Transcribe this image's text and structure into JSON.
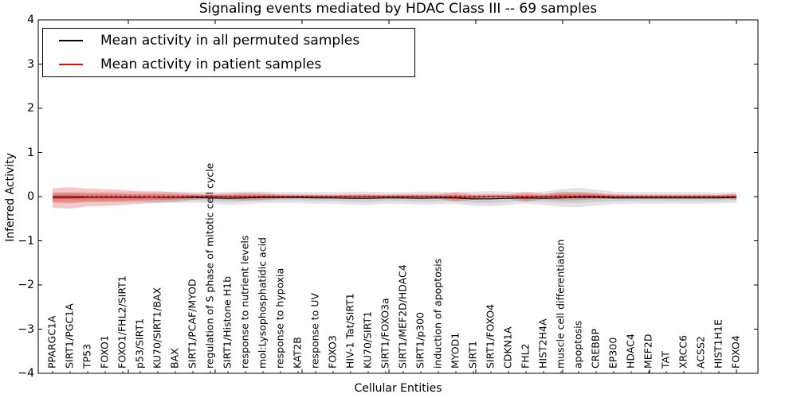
{
  "title": "Signaling events mediated by HDAC Class III -- 69 samples",
  "legend": {
    "items": [
      {
        "label": "Mean activity in all permuted samples",
        "color": "#000000"
      },
      {
        "label": "Mean activity in patient samples",
        "color": "#ff0000"
      }
    ]
  },
  "chart_data": {
    "type": "line",
    "title": "Signaling events mediated by HDAC Class III -- 69 samples",
    "xlabel": "Cellular Entities",
    "ylabel": "Inferred Activity",
    "ylim": [
      -4,
      4
    ],
    "yticks": [
      -4,
      -3,
      -2,
      -1,
      0,
      1,
      2,
      3,
      4
    ],
    "grid": false,
    "legend_position": "upper left",
    "zero_line": {
      "style": "dashed",
      "color": "#000000",
      "y": 0
    },
    "categories": [
      "PPARGC1A",
      "SIRT1/PGC1A",
      "TP53",
      "FOXO1",
      "FOXO1/FHL2/SIRT1",
      "p53/SIRT1",
      "KU70/SIRT1/BAX",
      "BAX",
      "SIRT1/PCAF/MYOD",
      "regulation of S phase of mitotic cell cycle",
      "SIRT1/Histone H1b",
      "response to nutrient levels",
      "mol:Lysophosphatidic acid",
      "response to hypoxia",
      "KAT2B",
      "response to UV",
      "FOXO3",
      "HIV-1 Tat/SIRT1",
      "KU70/SIRT1",
      "SIRT1/FOXO3a",
      "SIRT1/MEF2D/HDAC4",
      "SIRT1/p300",
      "induction of apoptosis",
      "MYOD1",
      "SIRT1",
      "SIRT1/FOXO4",
      "CDKN1A",
      "FHL2",
      "HIST2H4A",
      "muscle cell differentiation",
      "apoptosis",
      "CREBBP",
      "EP300",
      "HDAC4",
      "MEF2D",
      "TAT",
      "XRCC6",
      "ACSS2",
      "HIST1H1E",
      "FOXO4"
    ],
    "series": [
      {
        "name": "Mean activity in all permuted samples",
        "color": "#000000",
        "band_color": "#505050",
        "values": [
          0.0,
          0.0,
          -0.01,
          -0.01,
          -0.01,
          -0.01,
          -0.02,
          -0.02,
          -0.02,
          -0.03,
          -0.04,
          -0.03,
          -0.02,
          -0.02,
          -0.02,
          -0.03,
          -0.03,
          -0.04,
          -0.04,
          -0.03,
          -0.03,
          -0.04,
          -0.03,
          -0.03,
          -0.05,
          -0.05,
          -0.04,
          -0.03,
          -0.04,
          -0.03,
          -0.02,
          -0.02,
          -0.03,
          -0.03,
          -0.03,
          -0.03,
          -0.03,
          -0.03,
          -0.03,
          -0.02
        ],
        "band_halfwidth": [
          0.1,
          0.1,
          0.1,
          0.11,
          0.11,
          0.11,
          0.12,
          0.12,
          0.12,
          0.13,
          0.15,
          0.14,
          0.13,
          0.12,
          0.12,
          0.13,
          0.13,
          0.15,
          0.15,
          0.13,
          0.13,
          0.15,
          0.14,
          0.13,
          0.16,
          0.17,
          0.15,
          0.13,
          0.15,
          0.2,
          0.22,
          0.18,
          0.14,
          0.13,
          0.13,
          0.13,
          0.13,
          0.13,
          0.12,
          0.12
        ]
      },
      {
        "name": "Mean activity in patient samples",
        "color": "#ff0000",
        "band_color": "#dd3333",
        "values": [
          -0.03,
          -0.03,
          -0.02,
          -0.02,
          -0.02,
          -0.02,
          -0.01,
          -0.01,
          0.0,
          0.0,
          0.0,
          0.0,
          0.0,
          0.0,
          0.0,
          0.0,
          0.0,
          0.0,
          0.0,
          0.0,
          0.0,
          0.0,
          0.0,
          -0.01,
          -0.01,
          0.0,
          0.0,
          -0.01,
          0.0,
          0.01,
          0.01,
          0.01,
          0.0,
          0.0,
          0.0,
          0.0,
          0.0,
          0.0,
          0.0,
          0.0
        ],
        "band_halfwidth": [
          0.22,
          0.24,
          0.2,
          0.19,
          0.17,
          0.14,
          0.13,
          0.11,
          0.07,
          0.05,
          0.07,
          0.09,
          0.08,
          0.05,
          0.04,
          0.04,
          0.04,
          0.05,
          0.05,
          0.04,
          0.05,
          0.05,
          0.05,
          0.11,
          0.06,
          0.05,
          0.05,
          0.11,
          0.06,
          0.1,
          0.09,
          0.07,
          0.05,
          0.04,
          0.04,
          0.04,
          0.04,
          0.04,
          0.04,
          0.07
        ]
      }
    ]
  }
}
